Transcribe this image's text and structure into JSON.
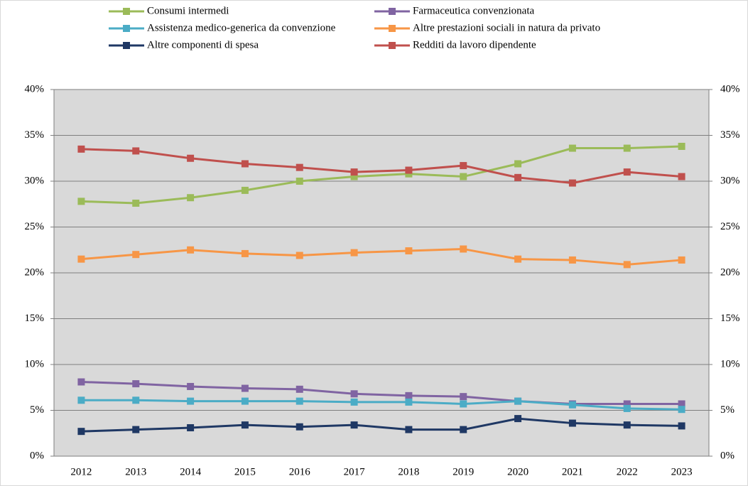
{
  "chart_data": {
    "type": "line",
    "categories": [
      "2012",
      "2013",
      "2014",
      "2015",
      "2016",
      "2017",
      "2018",
      "2019",
      "2020",
      "2021",
      "2022",
      "2023"
    ],
    "series": [
      {
        "name": "Consumi intermedi",
        "color": "#9bbb59",
        "values": [
          27.8,
          27.6,
          28.2,
          29.0,
          30.0,
          30.5,
          30.8,
          30.5,
          31.9,
          33.6,
          33.6,
          33.8
        ]
      },
      {
        "name": "Farmaceutica convenzionata",
        "color": "#8064a2",
        "values": [
          8.1,
          7.9,
          7.6,
          7.4,
          7.3,
          6.8,
          6.6,
          6.5,
          6.0,
          5.7,
          5.7,
          5.7
        ]
      },
      {
        "name": "Assistenza medico-generica da convenzione",
        "color": "#4bacc6",
        "values": [
          6.1,
          6.1,
          6.0,
          6.0,
          6.0,
          5.9,
          5.9,
          5.7,
          6.0,
          5.6,
          5.2,
          5.1
        ]
      },
      {
        "name": "Altre prestazioni sociali in natura da privato",
        "color": "#f79646",
        "values": [
          21.5,
          22.0,
          22.5,
          22.1,
          21.9,
          22.2,
          22.4,
          22.6,
          21.5,
          21.4,
          20.9,
          21.4
        ]
      },
      {
        "name": "Altre componenti di spesa",
        "color": "#1f3864",
        "values": [
          2.7,
          2.9,
          3.1,
          3.4,
          3.2,
          3.4,
          2.9,
          2.9,
          4.1,
          3.6,
          3.4,
          3.3
        ]
      },
      {
        "name": "Redditi da lavoro dipendente",
        "color": "#c0504d",
        "values": [
          33.5,
          33.3,
          32.5,
          31.9,
          31.5,
          31.0,
          31.2,
          31.7,
          30.4,
          29.8,
          31.0,
          30.5
        ]
      }
    ],
    "ylim": [
      0,
      40
    ],
    "yticks": [
      {
        "value": 0,
        "label": "0%"
      },
      {
        "value": 5,
        "label": "5%"
      },
      {
        "value": 10,
        "label": "10%"
      },
      {
        "value": 15,
        "label": "15%"
      },
      {
        "value": 20,
        "label": "20%"
      },
      {
        "value": 25,
        "label": "25%"
      },
      {
        "value": 30,
        "label": "30%"
      },
      {
        "value": 35,
        "label": "35%"
      },
      {
        "value": 40,
        "label": "40%"
      }
    ],
    "y2lim": [
      0,
      40
    ],
    "y2ticks": [
      {
        "value": 0,
        "label": "0%"
      },
      {
        "value": 5,
        "label": "5%"
      },
      {
        "value": 10,
        "label": "10%"
      },
      {
        "value": 15,
        "label": "15%"
      },
      {
        "value": 20,
        "label": "20%"
      },
      {
        "value": 25,
        "label": "25%"
      },
      {
        "value": 30,
        "label": "30%"
      },
      {
        "value": 35,
        "label": "35%"
      },
      {
        "value": 40,
        "label": "40%"
      }
    ],
    "grid": true,
    "legend": "top"
  }
}
